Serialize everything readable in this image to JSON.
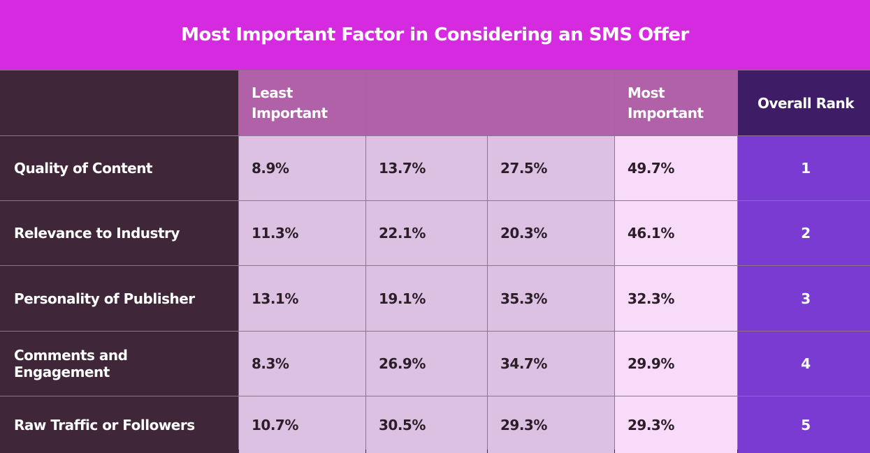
{
  "chart_data": {
    "type": "table",
    "title": "Most Important Factor in Considering an SMS Offer",
    "columns": [
      "Least\nImportant",
      "",
      "",
      "Most\nImportant",
      "Overall Rank"
    ],
    "rows": [
      {
        "label": "Quality of Content",
        "values": [
          "8.9%",
          "13.7%",
          "27.5%",
          "49.7%"
        ],
        "rank": "1"
      },
      {
        "label": "Relevance to Industry",
        "values": [
          "11.3%",
          "22.1%",
          "20.3%",
          "46.1%"
        ],
        "rank": "2"
      },
      {
        "label": "Personality of Publisher",
        "values": [
          "13.1%",
          "19.1%",
          "35.3%",
          "32.3%"
        ],
        "rank": "3"
      },
      {
        "label": "Comments and Engagement",
        "values": [
          "8.3%",
          "26.9%",
          "34.7%",
          "29.9%"
        ],
        "rank": "4"
      },
      {
        "label": "Raw Traffic or Followers",
        "values": [
          "10.7%",
          "30.5%",
          "29.3%",
          "29.3%"
        ],
        "rank": "5"
      }
    ]
  },
  "colors": {
    "title_bg": "#d52adf",
    "header_bg": "#b061a8",
    "rank_header_bg": "#3f1d66",
    "label_bg": "#3f2639",
    "value_bg": "#dcc1e2",
    "most_important_bg": "#f8daf9",
    "rank_bg": "#7a3bd2"
  }
}
